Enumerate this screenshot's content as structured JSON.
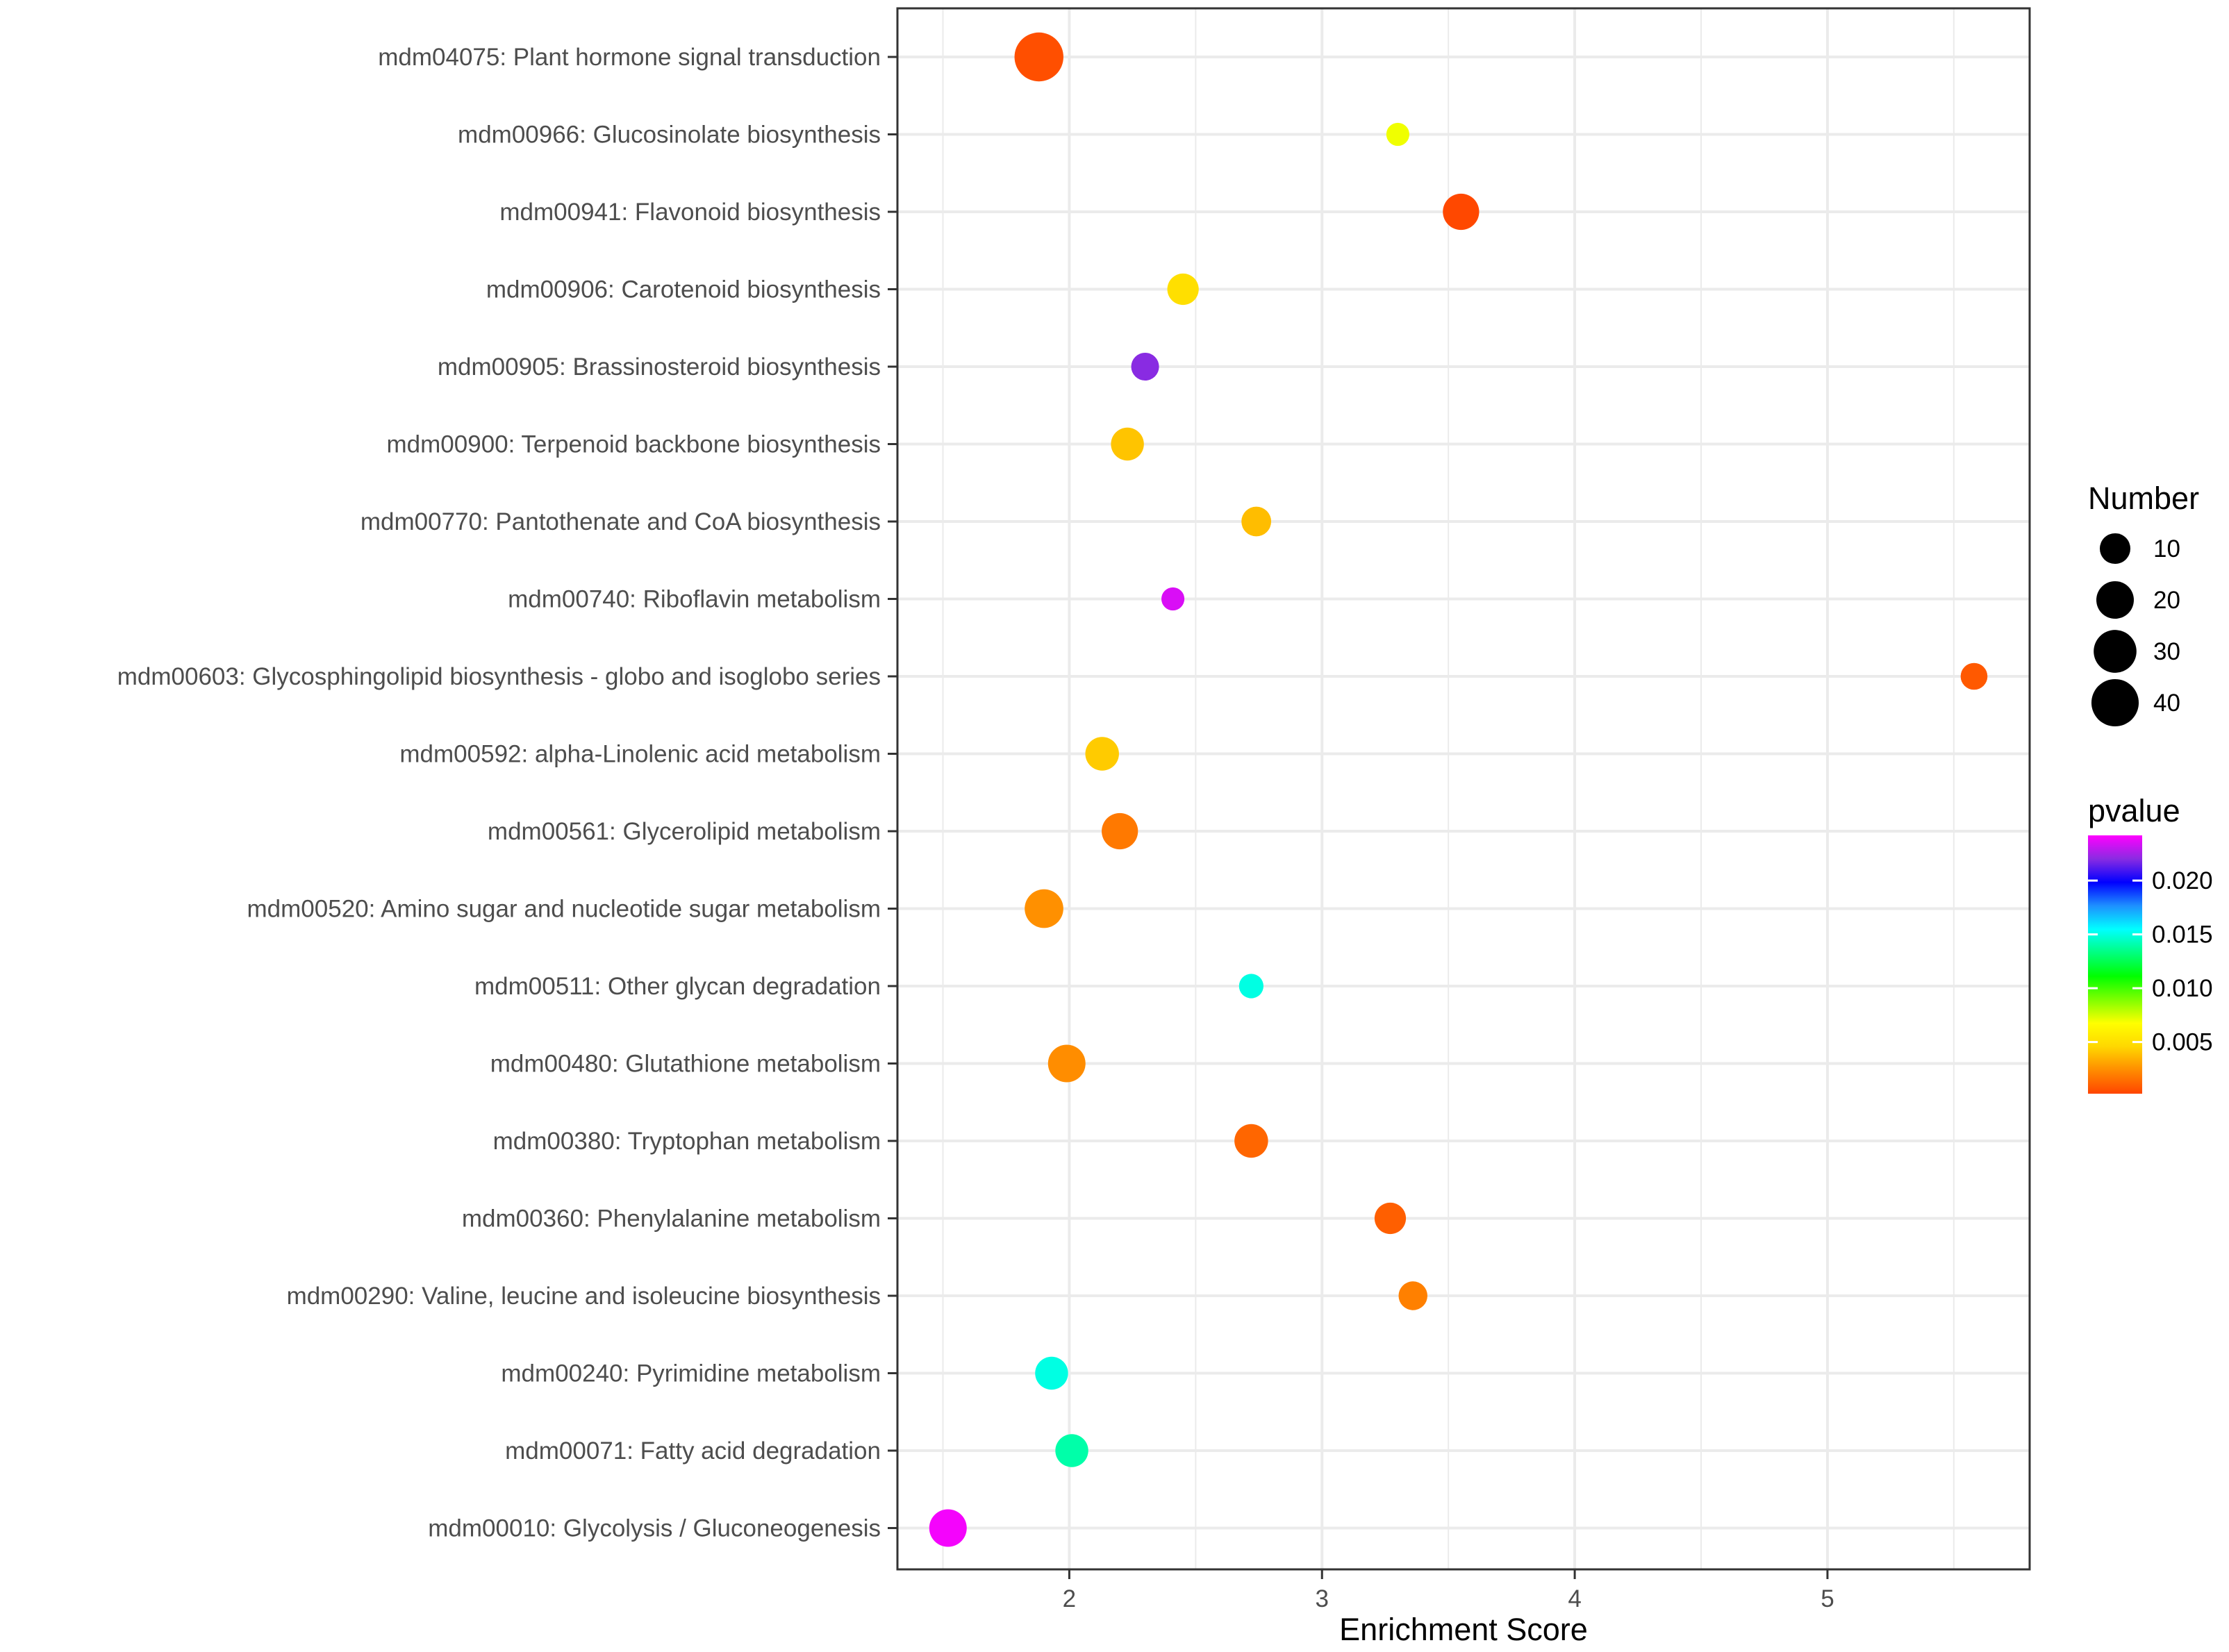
{
  "chart_data": {
    "type": "scatter",
    "title": "",
    "xlabel": "Enrichment Score",
    "ylabel": "",
    "xlim": [
      1.32,
      5.8
    ],
    "xticks": [
      2,
      3,
      4,
      5
    ],
    "grid": true,
    "categories": [
      "mdm04075: Plant hormone signal transduction",
      "mdm00966: Glucosinolate biosynthesis",
      "mdm00941: Flavonoid biosynthesis",
      "mdm00906: Carotenoid biosynthesis",
      "mdm00905: Brassinosteroid biosynthesis",
      "mdm00900: Terpenoid backbone biosynthesis",
      "mdm00770: Pantothenate and CoA biosynthesis",
      "mdm00740: Riboflavin metabolism",
      "mdm00603: Glycosphingolipid biosynthesis - globo and isoglobo series",
      "mdm00592: alpha-Linolenic acid metabolism",
      "mdm00561: Glycerolipid metabolism",
      "mdm00520: Amino sugar and nucleotide sugar metabolism",
      "mdm00511: Other glycan degradation",
      "mdm00480: Glutathione metabolism",
      "mdm00380: Tryptophan metabolism",
      "mdm00360: Phenylalanine metabolism",
      "mdm00290: Valine, leucine and isoleucine biosynthesis",
      "mdm00240: Pyrimidine metabolism",
      "mdm00071: Fatty acid degradation",
      "mdm00010: Glycolysis / Gluconeogenesis"
    ],
    "points": [
      {
        "x": 1.88,
        "number": 44,
        "pvalue": 0.0005
      },
      {
        "x": 3.3,
        "number": 3,
        "pvalue": 0.007
      },
      {
        "x": 3.55,
        "number": 18,
        "pvalue": 0.0003
      },
      {
        "x": 2.45,
        "number": 11,
        "pvalue": 0.005
      },
      {
        "x": 2.3,
        "number": 7,
        "pvalue": 0.022
      },
      {
        "x": 2.23,
        "number": 13,
        "pvalue": 0.004
      },
      {
        "x": 2.74,
        "number": 9,
        "pvalue": 0.0038
      },
      {
        "x": 2.41,
        "number": 3,
        "pvalue": 0.0235
      },
      {
        "x": 5.58,
        "number": 6,
        "pvalue": 0.0008
      },
      {
        "x": 2.13,
        "number": 14,
        "pvalue": 0.0042
      },
      {
        "x": 2.2,
        "number": 18,
        "pvalue": 0.0018
      },
      {
        "x": 1.9,
        "number": 22,
        "pvalue": 0.0025
      },
      {
        "x": 2.72,
        "number": 4,
        "pvalue": 0.015
      },
      {
        "x": 1.99,
        "number": 20,
        "pvalue": 0.0024
      },
      {
        "x": 2.72,
        "number": 14,
        "pvalue": 0.0012
      },
      {
        "x": 3.27,
        "number": 11,
        "pvalue": 0.001
      },
      {
        "x": 3.36,
        "number": 8,
        "pvalue": 0.002
      },
      {
        "x": 1.93,
        "number": 13,
        "pvalue": 0.015
      },
      {
        "x": 2.01,
        "number": 13,
        "pvalue": 0.014
      },
      {
        "x": 1.52,
        "number": 20,
        "pvalue": 0.024
      }
    ],
    "size_legend": {
      "title": "Number",
      "values": [
        10,
        20,
        30,
        40
      ]
    },
    "color_legend": {
      "title": "pvalue",
      "range": [
        0.0002,
        0.0242
      ],
      "ticks": [
        0.02,
        0.015,
        0.01,
        0.005
      ],
      "tick_labels": [
        "0.020",
        "0.015",
        "0.010",
        "0.005"
      ],
      "colors_low_to_high": [
        "#ff4500",
        "#ff8c00",
        "#ffd700",
        "#ffff00",
        "#7fff00",
        "#00ff00",
        "#00ff7f",
        "#00ffff",
        "#1e90ff",
        "#0000ff",
        "#8a2be2",
        "#ff00ff"
      ]
    }
  }
}
